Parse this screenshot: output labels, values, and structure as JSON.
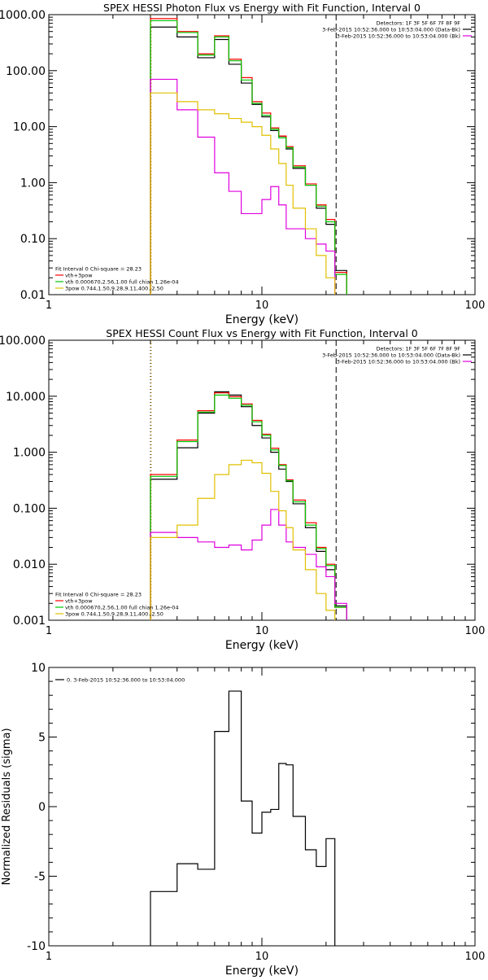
{
  "chart_data": [
    {
      "type": "line",
      "step": true,
      "title": "SPEX HESSI Photon Flux vs Energy with Fit Function, Interval 0",
      "xlabel": "Energy (keV)",
      "ylabel": "",
      "xscale": "log",
      "yscale": "log",
      "xlim": [
        1,
        100
      ],
      "ylim": [
        0.01,
        1000
      ],
      "xticks": [
        {
          "v": 1,
          "label": "1"
        },
        {
          "v": 10,
          "label": "10"
        },
        {
          "v": 100,
          "label": "100"
        }
      ],
      "yticks": [
        {
          "v": 1000,
          "label": "1000.00"
        },
        {
          "v": 100,
          "label": "100.00"
        },
        {
          "v": 10,
          "label": "10.00"
        },
        {
          "v": 1,
          "label": "1.00"
        },
        {
          "v": 0.1,
          "label": "0.10"
        },
        {
          "v": 0.01,
          "label": "0.01"
        }
      ],
      "vlines": [
        {
          "x": 3.0,
          "style": "dotted",
          "color": "#000000"
        },
        {
          "x": 3.0,
          "style": "dotted",
          "color": "#e0a000"
        },
        {
          "x": 22.3,
          "style": "dashed",
          "color": "#000000"
        }
      ],
      "edges": [
        3,
        4,
        5,
        6,
        7,
        8,
        9,
        10,
        11,
        12,
        13,
        14,
        16,
        18,
        20,
        22,
        25
      ],
      "series": [
        {
          "key": "black",
          "color": "#000000",
          "values": [
            600,
            400,
            170,
            360,
            130,
            60,
            25,
            15,
            8.5,
            6.7,
            4.0,
            1.8,
            0.9,
            0.35,
            0.18,
            0.027
          ]
        },
        {
          "key": "red",
          "color": "#ff0000",
          "values": [
            850,
            500,
            200,
            420,
            160,
            75,
            28,
            17.5,
            9.5,
            6.8,
            4.4,
            2.0,
            0.95,
            0.4,
            0.22,
            0.025
          ]
        },
        {
          "key": "green",
          "color": "#00c800",
          "values": [
            780,
            480,
            190,
            400,
            150,
            68,
            26,
            16,
            9.0,
            6.3,
            4.2,
            1.9,
            0.9,
            0.38,
            0.2,
            0.023
          ]
        },
        {
          "key": "magenta",
          "color": "#e000e0",
          "values": [
            70,
            20,
            6.5,
            1.5,
            0.7,
            0.28,
            0.28,
            0.5,
            0.85,
            0.4,
            0.15,
            0.15,
            0.1,
            0.08,
            0.06,
            0.008
          ]
        },
        {
          "key": "yellow",
          "color": "#e0c000",
          "values": [
            40,
            28,
            20,
            17,
            14,
            12,
            10,
            7,
            4,
            2.2,
            0.9,
            0.35,
            0.15,
            0.05,
            0.02,
            0.008
          ]
        }
      ],
      "legend_top_right": {
        "lines": [
          {
            "text": "Detectors: 1F 3F 5F 6F 7F 8F 9F",
            "color": ""
          },
          {
            "text": "3-Feb-2015 10:52:36.000 to 10:53:04.000 (Data-Bk)",
            "color": "#000000"
          },
          {
            "text": "3-Feb-2015 10:52:36.000 to 10:53:04.000 (Bk)",
            "color": "#e000e0"
          }
        ]
      },
      "legend_bottom_left": {
        "lines": [
          {
            "text": "Fit Interval 0   Chi-square = 28.23",
            "color": ""
          },
          {
            "text": "vth+3pow",
            "color": "#ff0000"
          },
          {
            "text": "vth 0.000670,2.56,1.00   full chian 1.26e-04",
            "color": "#00c800"
          },
          {
            "text": "3pow 0.744,1.50,9.28,9.11,400.,2.50",
            "color": "#e0c000"
          }
        ]
      }
    },
    {
      "type": "line",
      "step": true,
      "title": "SPEX HESSI Count Flux vs Energy with Fit Function, Interval 0",
      "xlabel": "Energy (keV)",
      "ylabel": "",
      "xscale": "log",
      "yscale": "log",
      "xlim": [
        1,
        100
      ],
      "ylim": [
        0.001,
        100
      ],
      "xticks": [
        {
          "v": 1,
          "label": "1"
        },
        {
          "v": 10,
          "label": "10"
        },
        {
          "v": 100,
          "label": "100"
        }
      ],
      "yticks": [
        {
          "v": 100,
          "label": "100.000"
        },
        {
          "v": 10,
          "label": "10.000"
        },
        {
          "v": 1,
          "label": "1.000"
        },
        {
          "v": 0.1,
          "label": "0.100"
        },
        {
          "v": 0.01,
          "label": "0.010"
        },
        {
          "v": 0.001,
          "label": "0.001"
        }
      ],
      "vlines": [
        {
          "x": 3.0,
          "style": "dotted",
          "color": "#000000"
        },
        {
          "x": 3.0,
          "style": "dotted",
          "color": "#e0a000"
        },
        {
          "x": 22.3,
          "style": "dashed",
          "color": "#000000"
        }
      ],
      "edges": [
        3,
        4,
        5,
        6,
        7,
        8,
        9,
        10,
        11,
        12,
        13,
        14,
        16,
        18,
        20,
        22,
        25,
        27
      ],
      "series": [
        {
          "key": "black",
          "color": "#000000",
          "values": [
            0.33,
            1.2,
            5.0,
            12.0,
            10.5,
            6.5,
            3.0,
            1.8,
            1.0,
            0.5,
            0.3,
            0.12,
            0.045,
            0.017,
            0.008,
            0.0018,
            0.0008
          ]
        },
        {
          "key": "red",
          "color": "#ff0000",
          "values": [
            0.4,
            1.65,
            5.5,
            11.5,
            9.8,
            7.3,
            3.7,
            2.1,
            1.18,
            0.6,
            0.32,
            0.14,
            0.055,
            0.02,
            0.01,
            0.0017,
            0.0008
          ]
        },
        {
          "key": "green",
          "color": "#00c800",
          "values": [
            0.37,
            1.55,
            5.2,
            10.5,
            9.2,
            6.9,
            3.5,
            2.0,
            1.1,
            0.58,
            0.31,
            0.13,
            0.05,
            0.019,
            0.0095,
            0.0017,
            0.0007
          ]
        },
        {
          "key": "magenta",
          "color": "#e000e0",
          "values": [
            0.037,
            0.03,
            0.025,
            0.02,
            0.022,
            0.018,
            0.027,
            0.05,
            0.095,
            0.05,
            0.025,
            0.02,
            0.015,
            0.009,
            0.006,
            0.002,
            0.0008
          ]
        },
        {
          "key": "yellow",
          "color": "#e0c000",
          "values": [
            0.03,
            0.05,
            0.15,
            0.4,
            0.6,
            0.72,
            0.65,
            0.42,
            0.2,
            0.09,
            0.045,
            0.018,
            0.008,
            0.003,
            0.0015,
            0.0008,
            0.0005
          ]
        }
      ],
      "legend_top_right": {
        "lines": [
          {
            "text": "Detectors: 1F 3F 5F 6F 7F 8F 9F",
            "color": ""
          },
          {
            "text": "3-Feb-2015 10:52:36.000 to 10:53:04.000 (Data-Bk)",
            "color": "#000000"
          },
          {
            "text": "3-Feb-2015 10:52:36.000 to 10:53:04.000 (Bk)",
            "color": "#e000e0"
          }
        ]
      },
      "legend_bottom_left": {
        "lines": [
          {
            "text": "Fit Interval 0   Chi-square = 28.23",
            "color": ""
          },
          {
            "text": "vth+3pow",
            "color": "#ff0000"
          },
          {
            "text": "vth 0.000670,2.56,1.00   full chian 1.26e-04",
            "color": "#00c800"
          },
          {
            "text": "3pow 0.744,1.50,9.28,9.11,400.,2.50",
            "color": "#e0c000"
          }
        ]
      }
    },
    {
      "type": "line",
      "step": true,
      "title": "",
      "xlabel": "Energy (keV)",
      "ylabel": "Normalized Residuals (sigma)",
      "xscale": "log",
      "yscale": "linear",
      "xlim": [
        1,
        100
      ],
      "ylim": [
        -10,
        10
      ],
      "xticks": [
        {
          "v": 1,
          "label": "1"
        },
        {
          "v": 10,
          "label": "10"
        },
        {
          "v": 100,
          "label": "100"
        }
      ],
      "yticks": [
        {
          "v": 10,
          "label": "10"
        },
        {
          "v": 5,
          "label": "5"
        },
        {
          "v": 0,
          "label": "0"
        },
        {
          "v": -5,
          "label": "-5"
        },
        {
          "v": -10,
          "label": "-10"
        }
      ],
      "vlines": [],
      "edges": [
        3,
        4,
        5,
        6,
        7,
        8,
        9,
        10,
        11,
        12,
        13,
        14,
        16,
        18,
        20,
        22
      ],
      "series": [
        {
          "key": "black",
          "color": "#000000",
          "drop_to_bottom": true,
          "values": [
            -6.1,
            -4.1,
            -4.5,
            5.4,
            8.3,
            0.4,
            -1.9,
            -0.4,
            -0.2,
            3.1,
            3.0,
            -0.7,
            -3.1,
            -4.3,
            -2.3
          ]
        }
      ],
      "legend_top_left": {
        "lines": [
          {
            "text": "0. 3-Feb-2015 10:52:36.000 to 10:53:04.000",
            "color": "#000000"
          }
        ]
      }
    }
  ]
}
